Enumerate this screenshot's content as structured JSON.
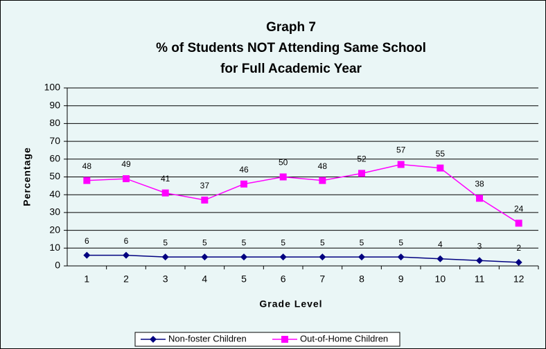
{
  "chart_data": {
    "type": "line",
    "title": [
      "Graph 7",
      "% of Students NOT Attending Same School",
      "for Full Academic Year"
    ],
    "x_label": "Grade Level",
    "y_label": "Percentage",
    "categories": [
      "1",
      "2",
      "3",
      "4",
      "5",
      "6",
      "7",
      "8",
      "9",
      "10",
      "11",
      "12"
    ],
    "series": [
      {
        "name": "Non-foster Children",
        "color": "#000080",
        "marker": "diamond",
        "values": [
          6,
          6,
          5,
          5,
          5,
          5,
          5,
          5,
          5,
          4,
          3,
          2
        ]
      },
      {
        "name": "Out-of-Home Children",
        "color": "#ff00ff",
        "marker": "square",
        "values": [
          48,
          49,
          41,
          37,
          46,
          50,
          48,
          52,
          57,
          55,
          38,
          24
        ]
      }
    ],
    "ylim": [
      0,
      100
    ],
    "yticks": [
      0,
      10,
      20,
      30,
      40,
      50,
      60,
      70,
      80,
      90,
      100
    ],
    "grid": true,
    "legend": "bottom"
  }
}
